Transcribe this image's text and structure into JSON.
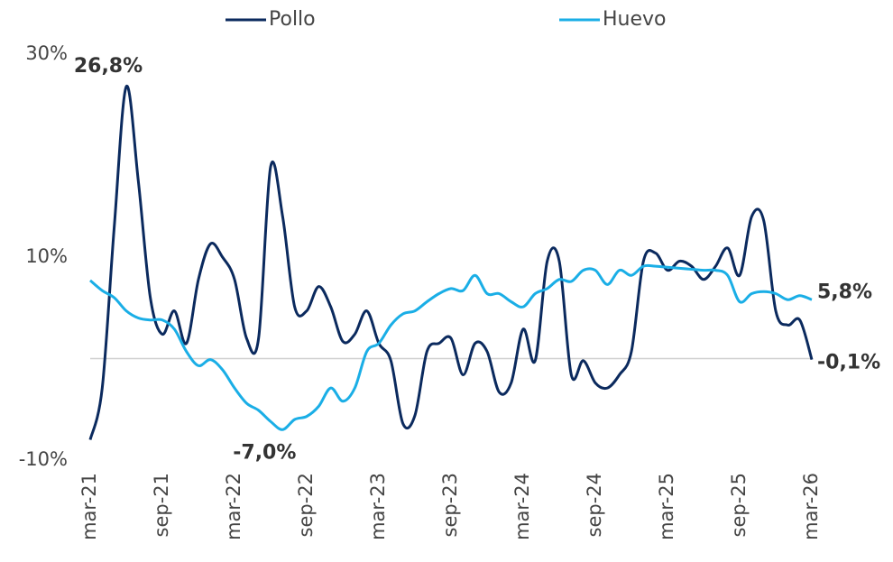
{
  "chart_data": {
    "type": "line",
    "categories": [
      "mar-21",
      null,
      null,
      null,
      null,
      null,
      "sep-21",
      null,
      null,
      null,
      null,
      null,
      "mar-22",
      null,
      null,
      null,
      null,
      null,
      "sep-22",
      null,
      null,
      null,
      null,
      null,
      "mar-23",
      null,
      null,
      null,
      null,
      null,
      "sep-23",
      null,
      null,
      null,
      null,
      null,
      "mar-24",
      null,
      null,
      null,
      null,
      null,
      "sep-24",
      null,
      null,
      null,
      null,
      null,
      "mar-25",
      null,
      null,
      null,
      null,
      null,
      "sep-25",
      null,
      null,
      null,
      null,
      null,
      "mar-26"
    ],
    "series": [
      {
        "name": "Pollo",
        "color": "#0b2a5e",
        "values": [
          -8.0,
          -2.9,
          13,
          26.8,
          17.5,
          6,
          2.4,
          4.7,
          1.5,
          7.8,
          11.3,
          10,
          7.8,
          2,
          2,
          18.9,
          14,
          5.1,
          4.7,
          7.1,
          5.1,
          1.7,
          2.4,
          4.7,
          1.5,
          -0.2,
          -6.4,
          -5.6,
          0.7,
          1.5,
          2,
          -1.6,
          1.5,
          0.7,
          -3.3,
          -2.4,
          2.9,
          -0.2,
          9.6,
          9.6,
          -1.6,
          -0.2,
          -2.4,
          -2.9,
          -1.6,
          0.7,
          9.6,
          10.4,
          8.7,
          9.6,
          9.1,
          7.8,
          9.1,
          10.9,
          8.2,
          14,
          13.6,
          4.7,
          3.3,
          3.8,
          -0.1
        ],
        "value_labels": [
          null,
          null,
          null,
          "26,8%",
          null,
          null,
          null,
          null,
          null,
          null,
          null,
          null,
          null,
          null,
          null,
          null,
          null,
          null,
          null,
          null,
          null,
          null,
          null,
          null,
          null,
          null,
          null,
          null,
          null,
          null,
          null,
          null,
          null,
          null,
          null,
          null,
          null,
          null,
          null,
          null,
          null,
          null,
          null,
          null,
          null,
          null,
          null,
          null,
          null,
          null,
          null,
          null,
          null,
          null,
          null,
          null,
          null,
          null,
          null,
          null,
          "-0,1%"
        ]
      },
      {
        "name": "Huevo",
        "color": "#1aaee6",
        "values": [
          7.7,
          6.7,
          6,
          4.7,
          4,
          3.8,
          3.8,
          2.9,
          0.7,
          -0.7,
          -0.1,
          -1.1,
          -2.9,
          -4.4,
          -5.1,
          -6.2,
          -7.0,
          -6.0,
          -5.7,
          -4.7,
          -2.9,
          -4.2,
          -2.9,
          0.7,
          1.5,
          3.3,
          4.4,
          4.7,
          5.6,
          6.4,
          6.9,
          6.7,
          8.2,
          6.4,
          6.4,
          5.6,
          5.1,
          6.4,
          6.9,
          7.8,
          7.6,
          8.7,
          8.7,
          7.3,
          8.7,
          8.2,
          9.1,
          9.1,
          9.0,
          8.9,
          8.8,
          8.7,
          8.7,
          8.2,
          5.6,
          6.4,
          6.6,
          6.4,
          5.8,
          6.2,
          5.8
        ],
        "value_labels": [
          null,
          null,
          null,
          null,
          null,
          null,
          null,
          null,
          null,
          null,
          null,
          null,
          null,
          null,
          null,
          null,
          "-7,0%",
          null,
          null,
          null,
          null,
          null,
          null,
          null,
          null,
          null,
          null,
          null,
          null,
          null,
          null,
          null,
          null,
          null,
          null,
          null,
          null,
          null,
          null,
          null,
          null,
          null,
          null,
          null,
          null,
          null,
          null,
          null,
          null,
          null,
          null,
          null,
          null,
          null,
          null,
          null,
          null,
          null,
          null,
          null,
          "5,8%"
        ]
      }
    ],
    "ylim": [
      -10,
      30
    ],
    "yticks": [
      {
        "value": -10,
        "label": "-10%"
      },
      {
        "value": 10,
        "label": "10%"
      },
      {
        "value": 30,
        "label": "30%"
      }
    ],
    "legend": "top"
  }
}
